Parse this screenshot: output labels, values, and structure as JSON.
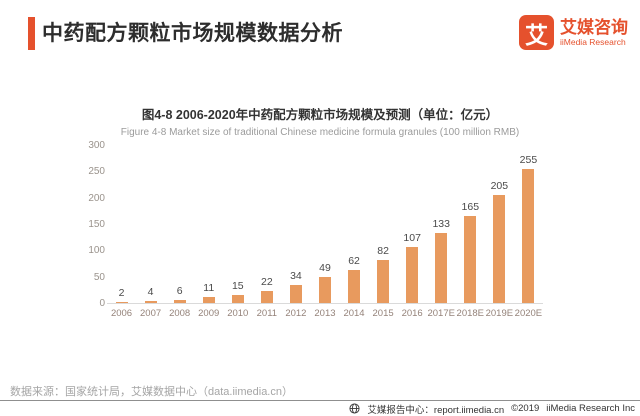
{
  "brand": {
    "color": "#E5512D",
    "logo_glyph": "艾",
    "name": "艾媒咨询",
    "subname": "iiMedia Research"
  },
  "header": {
    "title": "中药配方颗粒市场规模数据分析"
  },
  "chart_data": {
    "type": "bar",
    "title": "图4-8 2006-2020年中药配方颗粒市场规模及预测（单位：亿元）",
    "subtitle": "Figure 4-8 Market size of traditional Chinese medicine formula granules (100 million RMB)",
    "categories": [
      "2006",
      "2007",
      "2008",
      "2009",
      "2010",
      "2011",
      "2012",
      "2013",
      "2014",
      "2015",
      "2016",
      "2017E",
      "2018E",
      "2019E",
      "2020E"
    ],
    "values": [
      2,
      4,
      6,
      11,
      15,
      22,
      34,
      49,
      62,
      82,
      107,
      133,
      165,
      205,
      255
    ],
    "xlabel": "",
    "ylabel": "",
    "ylim": [
      0,
      300
    ],
    "yticks": [
      0,
      50,
      100,
      150,
      200,
      250,
      300
    ],
    "grid": false,
    "data_labels": true,
    "legend": "none",
    "bar_color": "#E89A5E"
  },
  "footer": {
    "source": "数据来源：国家统计局，艾媒数据中心（data.iimedia.cn）",
    "report_center": "艾媒报告中心：report.iimedia.cn",
    "copyright": "©2019",
    "company": "iiMedia Research Inc"
  }
}
